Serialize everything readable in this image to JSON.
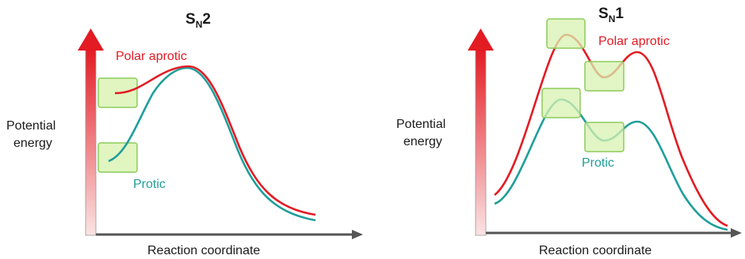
{
  "colors": {
    "polar_aprotic": "#e31b23",
    "protic": "#1f9e9a",
    "axis": "#555555",
    "box_fill": "#d8f2b0",
    "box_stroke": "#8ccc5a"
  },
  "panels": [
    {
      "title_main": "S",
      "title_sub": "N",
      "title_suffix": "2",
      "y_label_line1": "Potential",
      "y_label_line2": "energy",
      "x_label": "Reaction coordinate",
      "polar_label": "Polar aprotic",
      "protic_label": "Protic"
    },
    {
      "title_main": "S",
      "title_sub": "N",
      "title_suffix": "1",
      "y_label_line1": "Potential",
      "y_label_line2": "energy",
      "x_label": "Reaction coordinate",
      "polar_label": "Polar aprotic",
      "protic_label": "Protic"
    }
  ]
}
